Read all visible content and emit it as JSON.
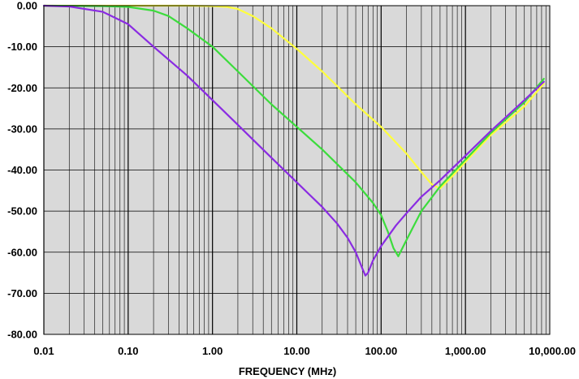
{
  "chart_data": {
    "type": "line",
    "title": "",
    "xlabel": "FREQUENCY (MHz)",
    "ylabel": "",
    "xscale": "log",
    "xlim": [
      0.01,
      10000
    ],
    "ylim": [
      -80,
      0
    ],
    "grid": true,
    "plot_background": "#d9d9d9",
    "x_ticks": [
      "0.01",
      "0.10",
      "1.00",
      "10.00",
      "100.00",
      "1,000.00",
      "10,000.00"
    ],
    "y_ticks": [
      "0.00",
      "-10.00",
      "-20.00",
      "-30.00",
      "-40.00",
      "-50.00",
      "-60.00",
      "-70.00",
      "-80.00"
    ],
    "series": [
      {
        "color": "#ffff3c",
        "x": [
          0.01,
          0.1,
          0.5,
          1,
          1.5,
          2,
          3,
          5,
          10,
          20,
          50,
          100,
          200,
          300,
          400,
          500,
          700,
          1000,
          2000,
          5000,
          8500
        ],
        "y": [
          0,
          0,
          0,
          -0.1,
          -0.3,
          -0.8,
          -2.5,
          -5.5,
          -10.5,
          -16,
          -24,
          -29.5,
          -36,
          -40.5,
          -43.5,
          -44.5,
          -41.5,
          -38,
          -31.5,
          -24.5,
          -19
        ]
      },
      {
        "color": "#3cdc3c",
        "x": [
          0.01,
          0.05,
          0.1,
          0.2,
          0.3,
          0.5,
          1,
          2,
          5,
          10,
          20,
          50,
          80,
          100,
          120,
          140,
          160,
          200,
          300,
          500,
          1000,
          2000,
          5000,
          8500
        ],
        "y": [
          0,
          -0.1,
          -0.3,
          -1.2,
          -2.5,
          -5.5,
          -10,
          -16,
          -24,
          -29.5,
          -35,
          -43,
          -48,
          -51,
          -55,
          -59,
          -61,
          -57,
          -50,
          -44,
          -37.5,
          -31,
          -23.5,
          -17.8
        ]
      },
      {
        "color": "#8a2be2",
        "x": [
          0.01,
          0.02,
          0.05,
          0.1,
          0.2,
          0.5,
          1,
          2,
          5,
          10,
          20,
          30,
          40,
          50,
          60,
          65,
          70,
          80,
          100,
          150,
          200,
          300,
          500,
          1000,
          2000,
          5000,
          8500
        ],
        "y": [
          0,
          -0.2,
          -1.5,
          -4.5,
          -10,
          -17,
          -23,
          -29,
          -37,
          -43,
          -49,
          -53,
          -56.5,
          -60,
          -64,
          -65.7,
          -65,
          -62,
          -58.5,
          -53.5,
          -50.5,
          -46.5,
          -42.5,
          -36.5,
          -30.5,
          -23,
          -18.5
        ]
      }
    ]
  }
}
